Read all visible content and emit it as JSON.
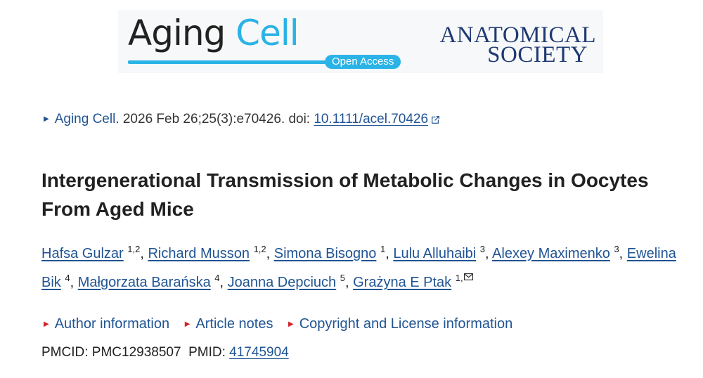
{
  "banner": {
    "journal_logo": {
      "word1": "Aging",
      "word2": "Cell",
      "badge": "Open Access",
      "accent_color": "#2ab3e6"
    },
    "society_logo": {
      "line1": "ANATOMICAL",
      "line2": "SOCIETY",
      "color": "#1f3a73"
    }
  },
  "citation": {
    "journal": "Aging Cell",
    "details": ". 2026 Feb 26;25(3):e70426. doi: ",
    "doi": "10.1111/acel.70426",
    "icon": "external-link-icon"
  },
  "article": {
    "title": "Intergenerational Transmission of Metabolic Changes in Oocytes From Aged Mice"
  },
  "authors": [
    {
      "name": "Hafsa Gulzar",
      "aff": "1,2"
    },
    {
      "name": "Richard Musson",
      "aff": "1,2"
    },
    {
      "name": "Simona Bisogno",
      "aff": "1"
    },
    {
      "name": "Lulu Alluhaibi",
      "aff": "3"
    },
    {
      "name": "Alexey Maximenko",
      "aff": "3"
    },
    {
      "name": "Ewelina Bik",
      "aff": "4"
    },
    {
      "name": "Małgorzata Barańska",
      "aff": "4"
    },
    {
      "name": "Joanna Depciuch",
      "aff": "5"
    },
    {
      "name": "Grażyna E Ptak",
      "aff": "1,"
    }
  ],
  "info_links": {
    "author_information": "Author information",
    "article_notes": "Article notes",
    "copyright": "Copyright and License information"
  },
  "identifiers": {
    "pmcid_label": "PMCID: ",
    "pmcid": "PMC12938507",
    "pmid_label": "PMID: ",
    "pmid": "41745904"
  },
  "colors": {
    "link": "#205493",
    "bullet_red": "#d2232a",
    "text": "#212121"
  }
}
